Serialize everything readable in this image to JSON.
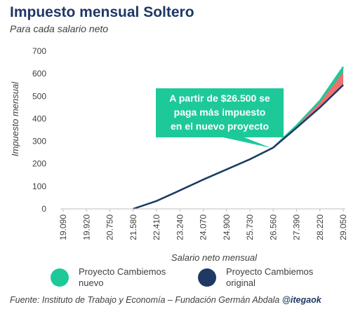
{
  "header": {
    "title": "Impuesto mensual Soltero",
    "subtitle": "Para cada salario  neto"
  },
  "annotation": {
    "lines": [
      "A partir de $26.500 se",
      "paga más impuesto",
      "en el nuevo proyecto"
    ]
  },
  "legend": {
    "items": [
      {
        "line1": "Proyecto Cambiemos",
        "line2": "nuevo"
      },
      {
        "line1": "Proyecto Cambiemos",
        "line2": "original"
      }
    ]
  },
  "source": {
    "text": "Fuente: Instituto de Trabajo y Economía – Fundación Germán Abdala",
    "handle": "@itegaok"
  },
  "colors": {
    "nuevo": "#1ec999",
    "original": "#1f3864",
    "gap": "#f07070",
    "callout": "#1ec999"
  },
  "chart_data": {
    "type": "area",
    "xlabel": "Salario  neto mensual",
    "ylabel": "Impuesto mensual",
    "ylim": [
      0,
      700
    ],
    "yticks": [
      0,
      100,
      200,
      300,
      400,
      500,
      600,
      700
    ],
    "x_labels": [
      "19.090",
      "19.920",
      "20.750",
      "21.580",
      "22.410",
      "23.240",
      "24.070",
      "24.900",
      "25.730",
      "26.560",
      "27.390",
      "28.220",
      "29.050"
    ],
    "x": [
      19090,
      19920,
      20750,
      21580,
      22410,
      23240,
      24070,
      24900,
      25730,
      26560,
      27390,
      28220,
      29050
    ],
    "series": [
      {
        "name": "Proyecto Cambiemos nuevo",
        "values": [
          0,
          0,
          0,
          0,
          35,
          82,
          130,
          175,
          220,
          272,
          370,
          480,
          630
        ]
      },
      {
        "name": "Proyecto Cambiemos original",
        "values": [
          0,
          0,
          0,
          0,
          35,
          82,
          130,
          175,
          220,
          272,
          360,
          450,
          550
        ]
      }
    ],
    "grid": false,
    "legend_position": "bottom"
  }
}
